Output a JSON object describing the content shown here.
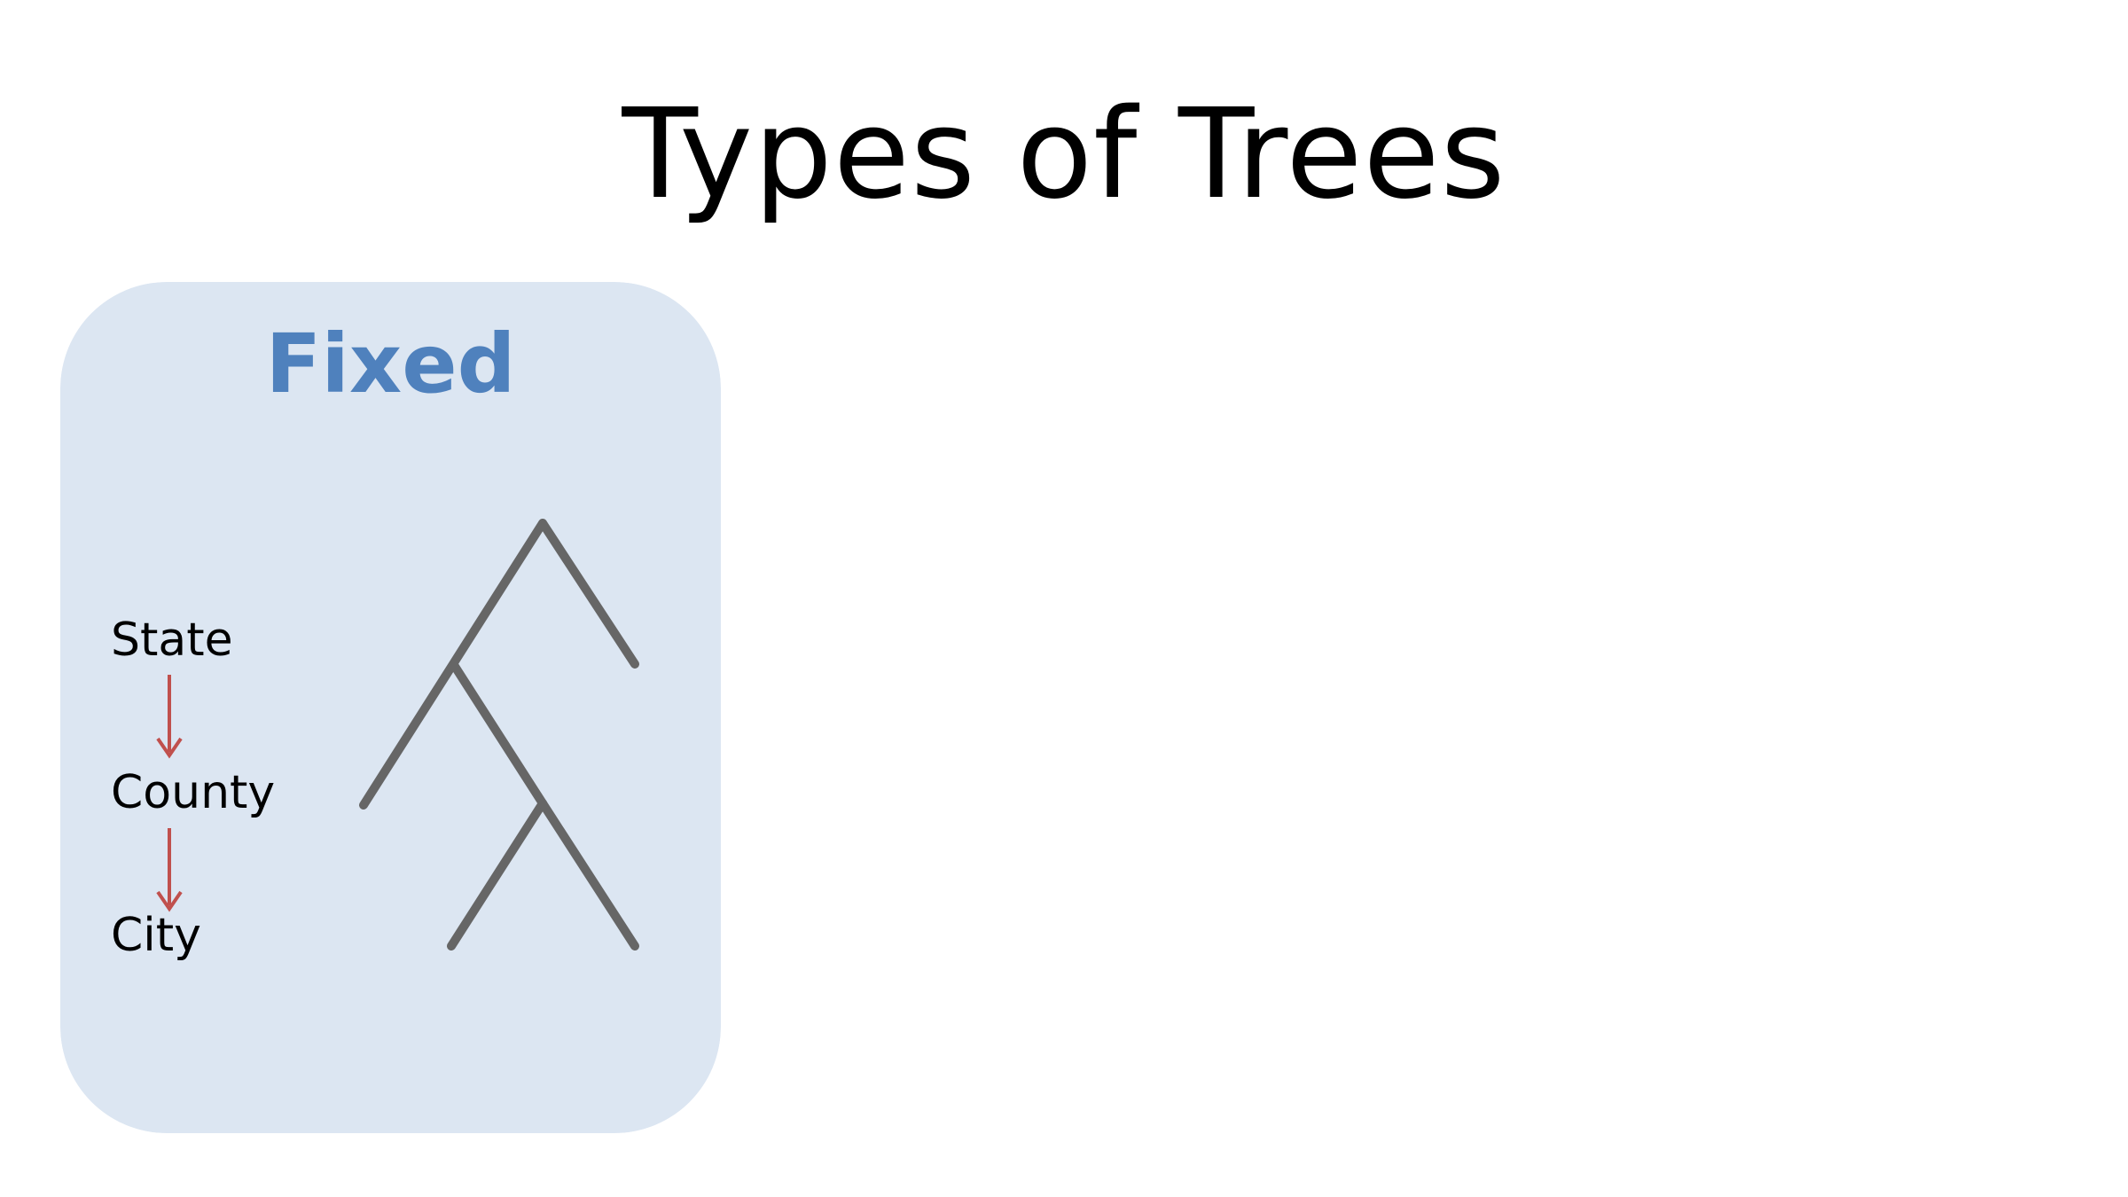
{
  "slide": {
    "title": "Types of Trees"
  },
  "fixed_panel": {
    "heading": "Fixed",
    "hierarchy_levels": [
      "State",
      "County",
      "City"
    ],
    "colors": {
      "panel_background": "#dce6f2",
      "heading": "#4f81bd",
      "arrow": "#c0504d",
      "tree_branch": "#666666"
    }
  },
  "tree_diagram": {
    "nodes": [
      "root",
      "state-branch-left",
      "county-split",
      "city-left",
      "city-right",
      "root-right"
    ],
    "edges": [
      [
        "root",
        "state-branch-left"
      ],
      [
        "root",
        "root-right"
      ],
      [
        "state-branch-left",
        "county-split"
      ],
      [
        "county-split",
        "city-left"
      ],
      [
        "county-split",
        "city-right"
      ]
    ]
  }
}
